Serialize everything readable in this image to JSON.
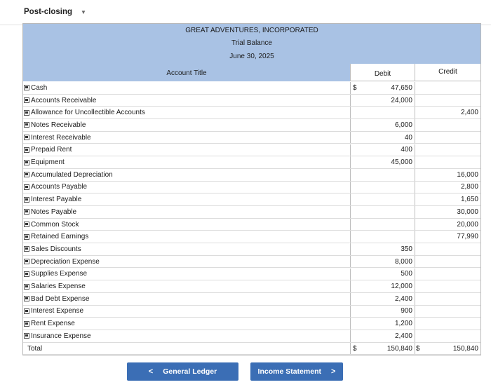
{
  "tab_select": {
    "label": "Post-closing"
  },
  "header": {
    "company": "GREAT ADVENTURES, INCORPORATED",
    "statement": "Trial Balance",
    "as_of": "June 30, 2025"
  },
  "columns": {
    "account_title": "Account Title",
    "debit": "Debit",
    "credit": "Credit"
  },
  "rows": [
    {
      "account": "Cash",
      "debit_prefix": "$",
      "debit": "47,650",
      "credit": ""
    },
    {
      "account": "Accounts Receivable",
      "debit": "24,000",
      "credit": ""
    },
    {
      "account": "Allowance for Uncollectible Accounts",
      "debit": "",
      "credit": "2,400"
    },
    {
      "account": "Notes Receivable",
      "debit": "6,000",
      "credit": ""
    },
    {
      "account": "Interest Receivable",
      "debit": "40",
      "credit": ""
    },
    {
      "account": "Prepaid Rent",
      "debit": "400",
      "credit": ""
    },
    {
      "account": "Equipment",
      "debit": "45,000",
      "credit": ""
    },
    {
      "account": "Accumulated Depreciation",
      "debit": "",
      "credit": "16,000"
    },
    {
      "account": "Accounts Payable",
      "debit": "",
      "credit": "2,800"
    },
    {
      "account": "Interest Payable",
      "debit": "",
      "credit": "1,650"
    },
    {
      "account": "Notes Payable",
      "debit": "",
      "credit": "30,000"
    },
    {
      "account": "Common Stock",
      "debit": "",
      "credit": "20,000"
    },
    {
      "account": "Retained Earnings",
      "debit": "",
      "credit": "77,990"
    },
    {
      "account": "Sales Discounts",
      "debit": "350",
      "credit": ""
    },
    {
      "account": "Depreciation Expense",
      "debit": "8,000",
      "credit": ""
    },
    {
      "account": "Supplies Expense",
      "debit": "500",
      "credit": ""
    },
    {
      "account": "Salaries Expense",
      "debit": "12,000",
      "credit": ""
    },
    {
      "account": "Bad Debt Expense",
      "debit": "2,400",
      "credit": ""
    },
    {
      "account": "Interest Expense",
      "debit": "900",
      "credit": ""
    },
    {
      "account": "Rent Expense",
      "debit": "1,200",
      "credit": ""
    },
    {
      "account": "Insurance Expense",
      "debit": "2,400",
      "credit": ""
    }
  ],
  "total": {
    "label": "Total",
    "debit_prefix": "$",
    "debit": "150,840",
    "credit_prefix": "$",
    "credit": "150,840"
  },
  "buttons": {
    "prev": "General Ledger",
    "next": "Income Statement"
  },
  "icons": {
    "prev": "chevron-left-icon",
    "next": "chevron-right-icon",
    "dropdown": "chevron-down-icon"
  },
  "colors": {
    "header_band": "#a9c2e4",
    "button": "#3b6eb5"
  }
}
